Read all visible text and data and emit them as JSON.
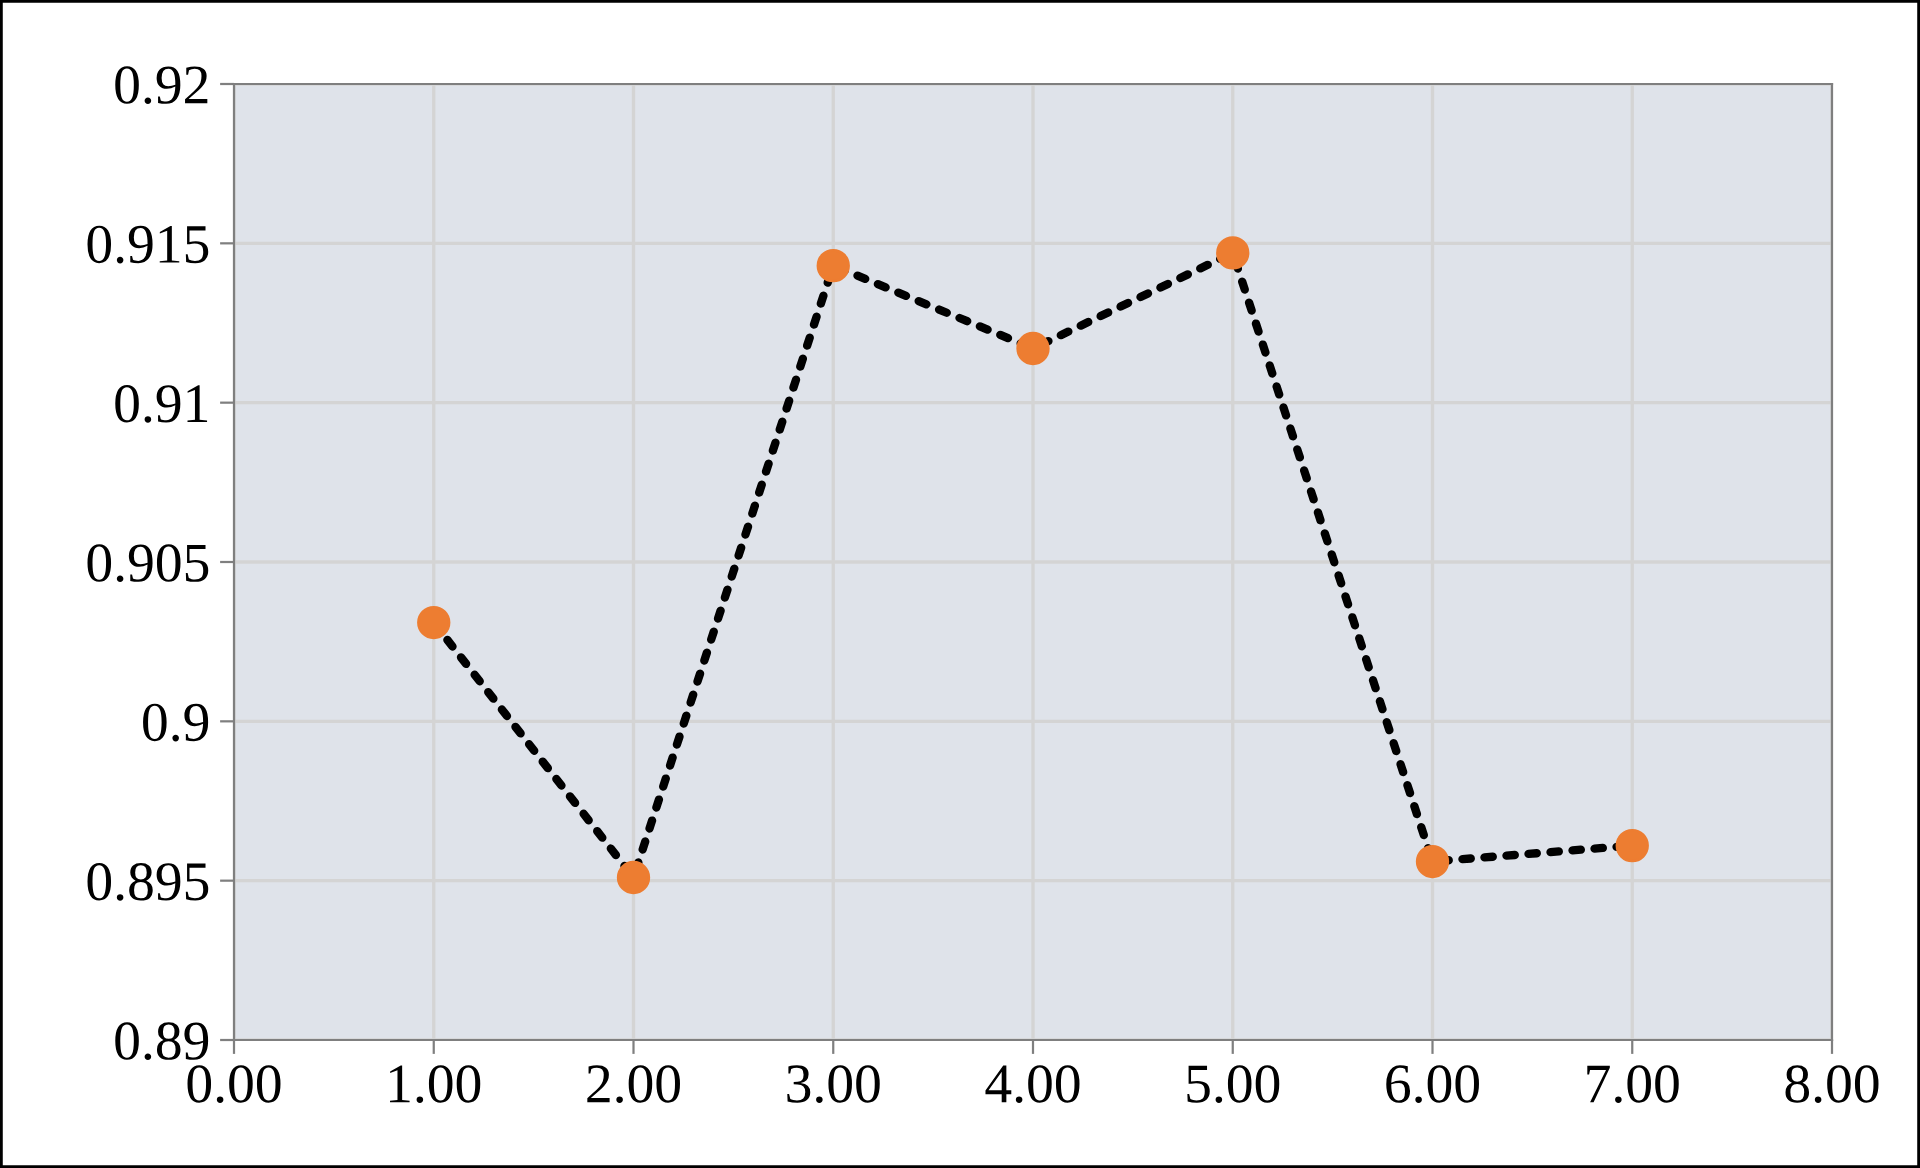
{
  "chart_data": {
    "type": "line",
    "x": [
      1,
      2,
      3,
      4,
      5,
      6,
      7
    ],
    "series": [
      {
        "color": "#ed7d31",
        "values": [
          0.9031,
          0.8951,
          0.9143,
          0.9117,
          0.9147,
          0.8956,
          0.8961
        ]
      }
    ],
    "xlim": [
      0,
      8
    ],
    "xticks": [
      {
        "value": 0,
        "label": "0.00"
      },
      {
        "value": 1,
        "label": "1.00"
      },
      {
        "value": 2,
        "label": "2.00"
      },
      {
        "value": 3,
        "label": "3.00"
      },
      {
        "value": 4,
        "label": "4.00"
      },
      {
        "value": 5,
        "label": "5.00"
      },
      {
        "value": 6,
        "label": "6.00"
      },
      {
        "value": 7,
        "label": "7.00"
      },
      {
        "value": 8,
        "label": "8.00"
      }
    ],
    "ylim": [
      0.89,
      0.92
    ],
    "yticks": [
      0.89,
      0.895,
      0.9,
      0.905,
      0.91,
      0.915,
      0.92
    ],
    "grid": true,
    "marker": "circle",
    "line_style": "dotted"
  }
}
